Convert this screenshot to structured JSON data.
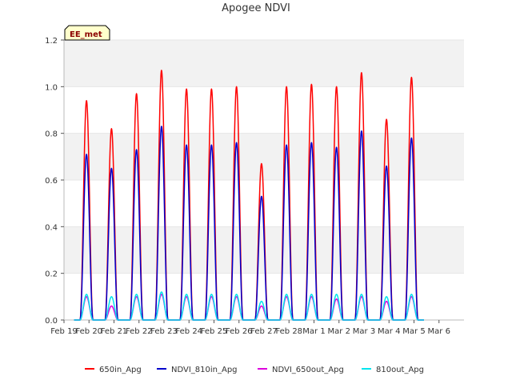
{
  "chart_data": {
    "type": "line",
    "title": "Apogee NDVI",
    "xlabel": "",
    "ylabel": "",
    "xlim": [
      0,
      16
    ],
    "ylim": [
      0.0,
      1.2
    ],
    "yticks": [
      0.0,
      0.2,
      0.4,
      0.6,
      0.8,
      1.0,
      1.2
    ],
    "xtick_labels": [
      "Feb 19",
      "Feb 20",
      "Feb 21",
      "Feb 22",
      "Feb 23",
      "Feb 24",
      "Feb 25",
      "Feb 26",
      "Feb 27",
      "Feb 28",
      "Mar 1",
      "Mar 2",
      "Mar 3",
      "Mar 4",
      "Mar 5",
      "Mar 6"
    ],
    "grid": "horizontal bands",
    "legend_position": "bottom",
    "annotation": "EE_met",
    "day_peak_positions": [
      0.9,
      1.9,
      2.9,
      3.9,
      4.9,
      5.9,
      6.9,
      7.9,
      8.9,
      9.9,
      10.9,
      11.9,
      12.9,
      13.9
    ],
    "series": [
      {
        "name": "650in_Apg",
        "color": "#ff0000",
        "day_peaks": [
          0.94,
          0.82,
          0.97,
          1.07,
          0.99,
          0.99,
          1.0,
          0.67,
          1.0,
          1.01,
          1.0,
          1.06,
          0.86,
          1.04
        ]
      },
      {
        "name": "NDVI_810in_Apg",
        "color": "#0000cc",
        "day_peaks": [
          0.71,
          0.65,
          0.73,
          0.83,
          0.75,
          0.75,
          0.76,
          0.53,
          0.75,
          0.76,
          0.74,
          0.81,
          0.66,
          0.78
        ]
      },
      {
        "name": "NDVI_650out_Apg",
        "color": "#dd00dd",
        "day_peaks": [
          0.1,
          0.06,
          0.1,
          0.11,
          0.1,
          0.1,
          0.1,
          0.06,
          0.1,
          0.1,
          0.09,
          0.1,
          0.08,
          0.1
        ]
      },
      {
        "name": "810out_Apg",
        "color": "#00e5ee",
        "day_peaks": [
          0.11,
          0.1,
          0.11,
          0.12,
          0.11,
          0.11,
          0.11,
          0.08,
          0.11,
          0.11,
          0.11,
          0.11,
          0.1,
          0.11
        ]
      }
    ]
  }
}
